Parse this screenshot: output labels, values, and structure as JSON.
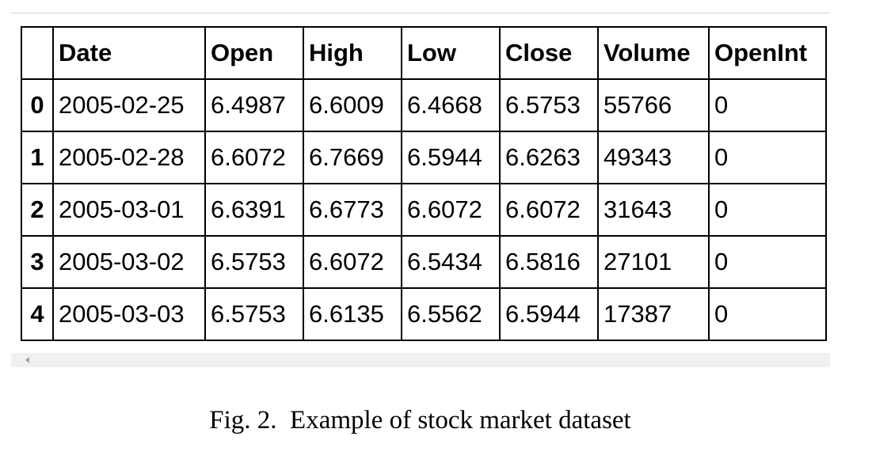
{
  "table": {
    "columns": [
      "",
      "Date",
      "Open",
      "High",
      "Low",
      "Close",
      "Volume",
      "OpenInt"
    ],
    "rows": [
      {
        "index": "0",
        "cells": [
          "2005-02-25",
          "6.4987",
          "6.6009",
          "6.4668",
          "6.5753",
          "55766",
          "0"
        ]
      },
      {
        "index": "1",
        "cells": [
          "2005-02-28",
          "6.6072",
          "6.7669",
          "6.5944",
          "6.6263",
          "49343",
          "0"
        ]
      },
      {
        "index": "2",
        "cells": [
          "2005-03-01",
          "6.6391",
          "6.6773",
          "6.6072",
          "6.6072",
          "31643",
          "0"
        ]
      },
      {
        "index": "3",
        "cells": [
          "2005-03-02",
          "6.5753",
          "6.6072",
          "6.5434",
          "6.5816",
          "27101",
          "0"
        ]
      },
      {
        "index": "4",
        "cells": [
          "2005-03-03",
          "6.5753",
          "6.6135",
          "6.5562",
          "6.5944",
          "17387",
          "0"
        ]
      }
    ]
  },
  "caption": {
    "label": "Fig. 2.",
    "text": "Example of stock market dataset"
  }
}
